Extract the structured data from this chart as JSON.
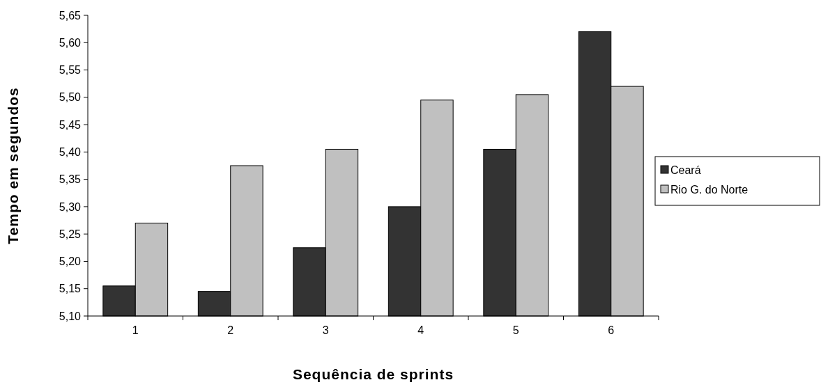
{
  "chart_data": {
    "type": "bar",
    "xlabel": "Sequência de sprints",
    "ylabel": "Tempo em segundos",
    "categories": [
      "1",
      "2",
      "3",
      "4",
      "5",
      "6"
    ],
    "series": [
      {
        "name": "Ceará",
        "color": "#333333",
        "values": [
          5.155,
          5.145,
          5.225,
          5.3,
          5.405,
          5.62
        ]
      },
      {
        "name": "Rio G. do Norte",
        "color": "#c0c0c0",
        "values": [
          5.27,
          5.375,
          5.405,
          5.495,
          5.505,
          5.52
        ]
      }
    ],
    "ylim": [
      5.1,
      5.65
    ],
    "yticks": [
      {
        "value": 5.1,
        "label": "5,10"
      },
      {
        "value": 5.15,
        "label": "5,15"
      },
      {
        "value": 5.2,
        "label": "5,20"
      },
      {
        "value": 5.25,
        "label": "5,25"
      },
      {
        "value": 5.3,
        "label": "5,30"
      },
      {
        "value": 5.35,
        "label": "5,35"
      },
      {
        "value": 5.4,
        "label": "5,40"
      },
      {
        "value": 5.45,
        "label": "5,45"
      },
      {
        "value": 5.5,
        "label": "5,50"
      },
      {
        "value": 5.55,
        "label": "5,55"
      },
      {
        "value": 5.6,
        "label": "5,60"
      },
      {
        "value": 5.65,
        "label": "5,65"
      }
    ],
    "grid": false,
    "legend": "right"
  }
}
